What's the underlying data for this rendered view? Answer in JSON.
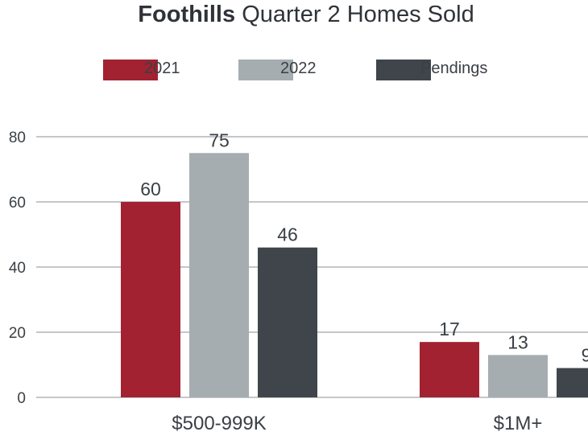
{
  "title": {
    "bold": "Foothills",
    "rest": "Quarter 2 Homes Sold"
  },
  "colors": {
    "2021": "#a22231",
    "2022": "#a5adb1",
    "Pendings": "#3f454b",
    "grid": "#8a8f94",
    "text": "#3a3f44"
  },
  "chart_data": {
    "type": "bar",
    "title": "Foothills Quarter 2 Homes Sold",
    "categories": [
      "$500-999K",
      "$1M+"
    ],
    "series": [
      {
        "name": "2021",
        "values": [
          60,
          17
        ]
      },
      {
        "name": "2022",
        "values": [
          75,
          13
        ]
      },
      {
        "name": "Pendings",
        "values": [
          46,
          9
        ]
      }
    ],
    "ylim": [
      0,
      80
    ],
    "yticks": [
      0,
      20,
      40,
      60,
      80
    ],
    "ytick_labels": [
      "0",
      "20",
      "40",
      "60",
      "80"
    ],
    "grid": true,
    "legend": "top"
  }
}
